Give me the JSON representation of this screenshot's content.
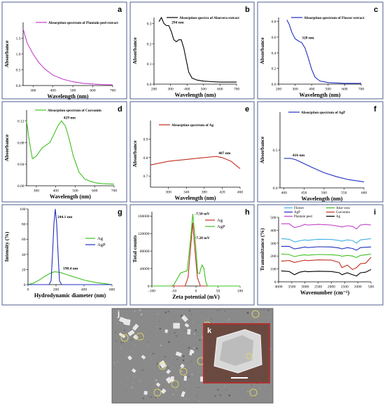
{
  "figure": {
    "colors": {
      "border": "#4f5f8f",
      "sem_bg": "#8a8a8a",
      "sem_inset_frame": "#b03030"
    }
  },
  "chart_data": [
    {
      "id": "a",
      "letter": "a",
      "type": "line",
      "legend": [
        "Absorption spectrum of Plantain peel extract"
      ],
      "xlabel": "Wavelength (nm)",
      "ylabel": "Absorbance",
      "xlim": [
        250,
        700
      ],
      "ylim": [
        0,
        2.0
      ],
      "xticks": [
        300,
        400,
        500,
        600,
        700
      ],
      "yticks": [
        0.0,
        0.5,
        1.0,
        1.5
      ],
      "ticklabels_x": [
        "300",
        "400",
        "500",
        "600",
        "700"
      ],
      "ticklabels_y": [
        "0.0",
        "0.5",
        "1.0",
        "1.5"
      ],
      "series": [
        {
          "name": "Absorption spectrum of Plantain peel extract",
          "color": "#c040c8",
          "x": [
            250,
            270,
            300,
            330,
            360,
            400,
            450,
            500,
            550,
            600,
            650,
            700
          ],
          "y": [
            1.8,
            1.35,
            1.0,
            0.72,
            0.52,
            0.33,
            0.2,
            0.12,
            0.07,
            0.05,
            0.03,
            0.02
          ]
        }
      ],
      "annotations": []
    },
    {
      "id": "b",
      "letter": "b",
      "type": "line",
      "legend": [
        "Absorption spectra of Aloevera extract"
      ],
      "xlabel": "Wavelength (nm)",
      "ylabel": "Absorbance",
      "xlim": [
        200,
        700
      ],
      "ylim": [
        0,
        0.33
      ],
      "xticks": [
        200,
        300,
        400,
        500,
        600,
        700
      ],
      "yticks": [
        0.0,
        0.1,
        0.2,
        0.3
      ],
      "ticklabels_x": [
        "200",
        "300",
        "400",
        "500",
        "600",
        "700"
      ],
      "ticklabels_y": [
        "0.0",
        "0.1",
        "0.2",
        "0.3"
      ],
      "series": [
        {
          "name": "Absorption spectra of Aloevera extract",
          "color": "#000000",
          "x": [
            230,
            245,
            260,
            275,
            290,
            305,
            320,
            335,
            350,
            365,
            380,
            395,
            410,
            430,
            460,
            500,
            550,
            600,
            650,
            700
          ],
          "y": [
            0.31,
            0.33,
            0.3,
            0.29,
            0.29,
            0.26,
            0.22,
            0.21,
            0.22,
            0.22,
            0.18,
            0.12,
            0.06,
            0.03,
            0.02,
            0.015,
            0.012,
            0.01,
            0.01,
            0.01
          ]
        }
      ],
      "annotations": [
        {
          "text": "294 nm",
          "x": 294,
          "y": 0.29
        }
      ]
    },
    {
      "id": "c",
      "letter": "c",
      "type": "line",
      "legend": [
        "Absorption spectrum of Flower extract"
      ],
      "xlabel": "Wavelength (nm)",
      "ylabel": "Absorbance",
      "xlim": [
        200,
        700
      ],
      "ylim": [
        0,
        0.85
      ],
      "xticks": [
        200,
        300,
        400,
        500,
        600,
        700
      ],
      "yticks": [
        0.0,
        0.2,
        0.4,
        0.6,
        0.8
      ],
      "ticklabels_x": [
        "200",
        "300",
        "400",
        "500",
        "600",
        "700"
      ],
      "ticklabels_y": [
        "0.0",
        "0.2",
        "0.4",
        "0.6",
        "0.8"
      ],
      "series": [
        {
          "name": "Absorption spectrum of Flower extract",
          "color": "#2030c0",
          "x": [
            250,
            265,
            280,
            300,
            320,
            340,
            360,
            380,
            400,
            420,
            450,
            500,
            550,
            600,
            650,
            700
          ],
          "y": [
            0.82,
            0.76,
            0.66,
            0.58,
            0.55,
            0.53,
            0.46,
            0.33,
            0.19,
            0.09,
            0.04,
            0.02,
            0.015,
            0.01,
            0.01,
            0.01
          ]
        }
      ],
      "annotations": [
        {
          "text": "328 nm",
          "x": 328,
          "y": 0.55
        }
      ]
    },
    {
      "id": "d",
      "letter": "d",
      "type": "line",
      "legend": [
        "Absorption spectrum of Curcumin"
      ],
      "xlabel": "Wavelength (nm)",
      "ylabel": "Absorbance",
      "xlim": [
        250,
        700
      ],
      "ylim": [
        0,
        0.14
      ],
      "xticks": [
        300,
        400,
        500,
        600,
        700
      ],
      "yticks": [
        0.0,
        0.04,
        0.08,
        0.12
      ],
      "ticklabels_x": [
        "300",
        "400",
        "500",
        "600",
        "700"
      ],
      "ticklabels_y": [
        "0.00",
        "0.04",
        "0.08",
        "0.12"
      ],
      "series": [
        {
          "name": "Absorption spectrum of Curcumin",
          "color": "#40c020",
          "x": [
            250,
            265,
            280,
            300,
            330,
            350,
            370,
            390,
            410,
            429,
            450,
            470,
            490,
            520,
            550,
            580,
            610,
            640,
            700
          ],
          "y": [
            0.12,
            0.08,
            0.05,
            0.055,
            0.07,
            0.075,
            0.08,
            0.095,
            0.11,
            0.12,
            0.11,
            0.085,
            0.055,
            0.025,
            0.012,
            0.008,
            0.005,
            0.004,
            0.003
          ]
        }
      ],
      "annotations": [
        {
          "text": "429 nm",
          "x": 429,
          "y": 0.12
        }
      ]
    },
    {
      "id": "e",
      "letter": "e",
      "type": "line",
      "legend": [
        "Absorption spectrum of Ag"
      ],
      "xlabel": "Wavelength (nm)",
      "ylabel": "Absorbance",
      "xlim": [
        260,
        460
      ],
      "ylim": [
        0.64,
        1.0
      ],
      "xticks": [
        300,
        340,
        380,
        420,
        460
      ],
      "yticks": [
        0.7,
        0.8,
        0.9
      ],
      "ticklabels_x": [
        "300",
        "340",
        "380",
        "420",
        "460"
      ],
      "ticklabels_y": [
        "0.7",
        "0.8",
        "0.9"
      ],
      "series": [
        {
          "name": "Absorption spectrum of Ag",
          "color": "#c03020",
          "x": [
            260,
            280,
            300,
            320,
            340,
            360,
            380,
            400,
            407,
            420,
            440,
            460
          ],
          "y": [
            0.76,
            0.77,
            0.78,
            0.785,
            0.79,
            0.795,
            0.8,
            0.805,
            0.806,
            0.8,
            0.78,
            0.74
          ]
        }
      ],
      "annotations": [
        {
          "text": "407 nm",
          "x": 407,
          "y": 0.806
        }
      ]
    },
    {
      "id": "f",
      "letter": "f",
      "type": "line",
      "legend": [
        "Absorption spectrum of AgP"
      ],
      "xlabel": "Wavelength (nm)",
      "ylabel": "Absorbance",
      "xlim": [
        390,
        600
      ],
      "ylim": [
        0,
        1.0
      ],
      "xticks": [
        400,
        450,
        500,
        550,
        600
      ],
      "yticks": [
        0.0,
        0.5
      ],
      "ticklabels_x": [
        "400",
        "450",
        "500",
        "550",
        "600"
      ],
      "ticklabels_y": [
        "0.0",
        "0.5"
      ],
      "series": [
        {
          "name": "Absorption spectrum of AgP",
          "color": "#2030c0",
          "x": [
            400,
            416,
            430,
            450,
            470,
            500,
            530,
            560,
            600
          ],
          "y": [
            0.39,
            0.39,
            0.37,
            0.32,
            0.27,
            0.2,
            0.15,
            0.11,
            0.08
          ]
        }
      ],
      "annotations": [
        {
          "text": "416 nm",
          "x": 416,
          "y": 0.39
        }
      ]
    },
    {
      "id": "g",
      "letter": "g",
      "type": "line",
      "legend": [
        "Ag",
        "AgP"
      ],
      "xlabel": "Hydrodynamic diameter (nm)",
      "ylabel": "Intensity (%)",
      "xlim": [
        0,
        600
      ],
      "ylim": [
        0,
        100
      ],
      "xticks": [
        0,
        200,
        400,
        600
      ],
      "yticks": [
        0,
        20,
        40,
        60,
        80,
        100
      ],
      "ticklabels_x": [
        "0",
        "200",
        "400",
        "600"
      ],
      "ticklabels_y": [
        "0",
        "20",
        "40",
        "60",
        "80",
        "100"
      ],
      "series": [
        {
          "name": "Ag",
          "color": "#40c020",
          "x": [
            0,
            40,
            80,
            120,
            160,
            190,
            230,
            280,
            330,
            400,
            480,
            560,
            600
          ],
          "y": [
            0,
            2,
            6,
            11,
            15,
            17,
            16,
            13,
            10,
            6,
            3,
            1,
            0
          ]
        },
        {
          "name": "AgP",
          "color": "#2030c0",
          "x": [
            0,
            150,
            165,
            175,
            185,
            195,
            205,
            215,
            225,
            240,
            600
          ],
          "y": [
            0,
            0,
            5,
            40,
            80,
            100,
            80,
            40,
            5,
            0,
            0
          ]
        }
      ],
      "annotations": [
        {
          "text": "244.1 nm",
          "x": 195,
          "y": 85
        },
        {
          "text": "190.4 nm",
          "x": 235,
          "y": 17
        }
      ]
    },
    {
      "id": "h",
      "letter": "h",
      "type": "line",
      "legend": [
        "Ag",
        "AgP"
      ],
      "xlabel": "Zeta potential (mV)",
      "ylabel": "Total counts",
      "xlim": [
        -100,
        100
      ],
      "ylim": [
        0,
        170000
      ],
      "xticks": [
        -100,
        -50,
        0,
        50,
        100
      ],
      "yticks": [
        0,
        40000,
        80000,
        120000,
        160000
      ],
      "ticklabels_x": [
        "-100",
        "-50",
        "0",
        "50",
        "100"
      ],
      "ticklabels_y": [
        "0",
        "40000",
        "80000",
        "120000",
        "160000"
      ],
      "series": [
        {
          "name": "Ag",
          "color": "#c03020",
          "x": [
            -100,
            -25,
            -18,
            -12,
            -7.5,
            -3,
            3,
            10,
            100
          ],
          "y": [
            0,
            0,
            20000,
            90000,
            145000,
            90000,
            20000,
            0,
            0
          ]
        },
        {
          "name": "AgP",
          "color": "#40c020",
          "x": [
            -100,
            -55,
            -50,
            -35,
            -20,
            -12,
            -7.28,
            -2,
            4,
            8,
            11,
            14,
            18,
            22,
            26,
            100
          ],
          "y": [
            0,
            0,
            3000,
            30000,
            35000,
            110000,
            165000,
            110000,
            30000,
            28000,
            40000,
            48000,
            40000,
            10000,
            0,
            0
          ]
        }
      ],
      "annotations": [
        {
          "text": "-7.50 mV",
          "x": -7.5,
          "y": 158000
        },
        {
          "text": "-7.28 mV",
          "x": -7.28,
          "y": 103000
        }
      ]
    },
    {
      "id": "i",
      "letter": "i",
      "type": "line",
      "legend": [
        "Flower",
        "AgP",
        "Plantain peel",
        "Aloe vera",
        "Curcumin",
        "Ag"
      ],
      "xlabel": "Wavenumber (cm⁻¹)",
      "ylabel": "Transmittance (%)",
      "xlim": [
        4000,
        500
      ],
      "ylim": [
        0,
        500
      ],
      "xticks": [
        4000,
        3500,
        3000,
        2500,
        2000,
        1500,
        1000,
        500
      ],
      "yticks": [
        0,
        100,
        200,
        300,
        400,
        500
      ],
      "ticklabels_x": [
        "4000",
        "3500",
        "3000",
        "2500",
        "2000",
        "1500",
        "1000",
        "500"
      ],
      "ticklabels_y": [
        "0",
        "100",
        "200",
        "300",
        "400",
        "500"
      ],
      "series": [
        {
          "name": "Plantain peel",
          "color": "#c040c8",
          "x": [
            3900,
            3600,
            3400,
            3200,
            3000,
            2900,
            2500,
            2000,
            1700,
            1600,
            1400,
            1200,
            1050,
            900,
            700,
            500
          ],
          "y": [
            450,
            450,
            420,
            430,
            445,
            440,
            445,
            440,
            430,
            425,
            435,
            430,
            410,
            440,
            445,
            440
          ]
        },
        {
          "name": "Flower",
          "color": "#40b0e0",
          "x": [
            3900,
            3600,
            3400,
            3200,
            3000,
            2900,
            2500,
            2000,
            1700,
            1600,
            1400,
            1200,
            1050,
            900,
            700,
            500
          ],
          "y": [
            335,
            330,
            310,
            318,
            325,
            322,
            330,
            328,
            320,
            315,
            325,
            320,
            300,
            325,
            330,
            335
          ]
        },
        {
          "name": "AgP",
          "color": "#2030c0",
          "x": [
            3900,
            3600,
            3400,
            3200,
            3000,
            2900,
            2500,
            2000,
            1700,
            1600,
            1400,
            1200,
            1050,
            900,
            700,
            500
          ],
          "y": [
            275,
            275,
            255,
            262,
            270,
            265,
            272,
            270,
            262,
            255,
            265,
            258,
            245,
            265,
            268,
            270
          ]
        },
        {
          "name": "Aloe vera",
          "color": "#40c020",
          "x": [
            3900,
            3600,
            3400,
            3200,
            3000,
            2900,
            2500,
            2000,
            1700,
            1600,
            1400,
            1200,
            1050,
            900,
            700,
            500
          ],
          "y": [
            215,
            212,
            195,
            205,
            210,
            206,
            212,
            210,
            205,
            198,
            205,
            200,
            188,
            205,
            210,
            215
          ]
        },
        {
          "name": "Curcumin",
          "color": "#c03020",
          "x": [
            3900,
            3600,
            3400,
            3200,
            3000,
            2900,
            2500,
            2000,
            1700,
            1600,
            1400,
            1200,
            1050,
            900,
            700,
            500
          ],
          "y": [
            160,
            165,
            150,
            160,
            168,
            164,
            170,
            168,
            150,
            110,
            130,
            95,
            110,
            140,
            145,
            190
          ]
        },
        {
          "name": "Ag",
          "color": "#000000",
          "x": [
            3900,
            3600,
            3400,
            3200,
            3000,
            2900,
            2500,
            2000,
            1700,
            1600,
            1400,
            1200,
            1050,
            900,
            700,
            500
          ],
          "y": [
            85,
            80,
            55,
            75,
            82,
            78,
            82,
            80,
            70,
            55,
            70,
            55,
            45,
            70,
            75,
            95
          ]
        }
      ],
      "annotations": []
    }
  ],
  "sem": {
    "letter_j": "j",
    "letter_k": "k"
  }
}
